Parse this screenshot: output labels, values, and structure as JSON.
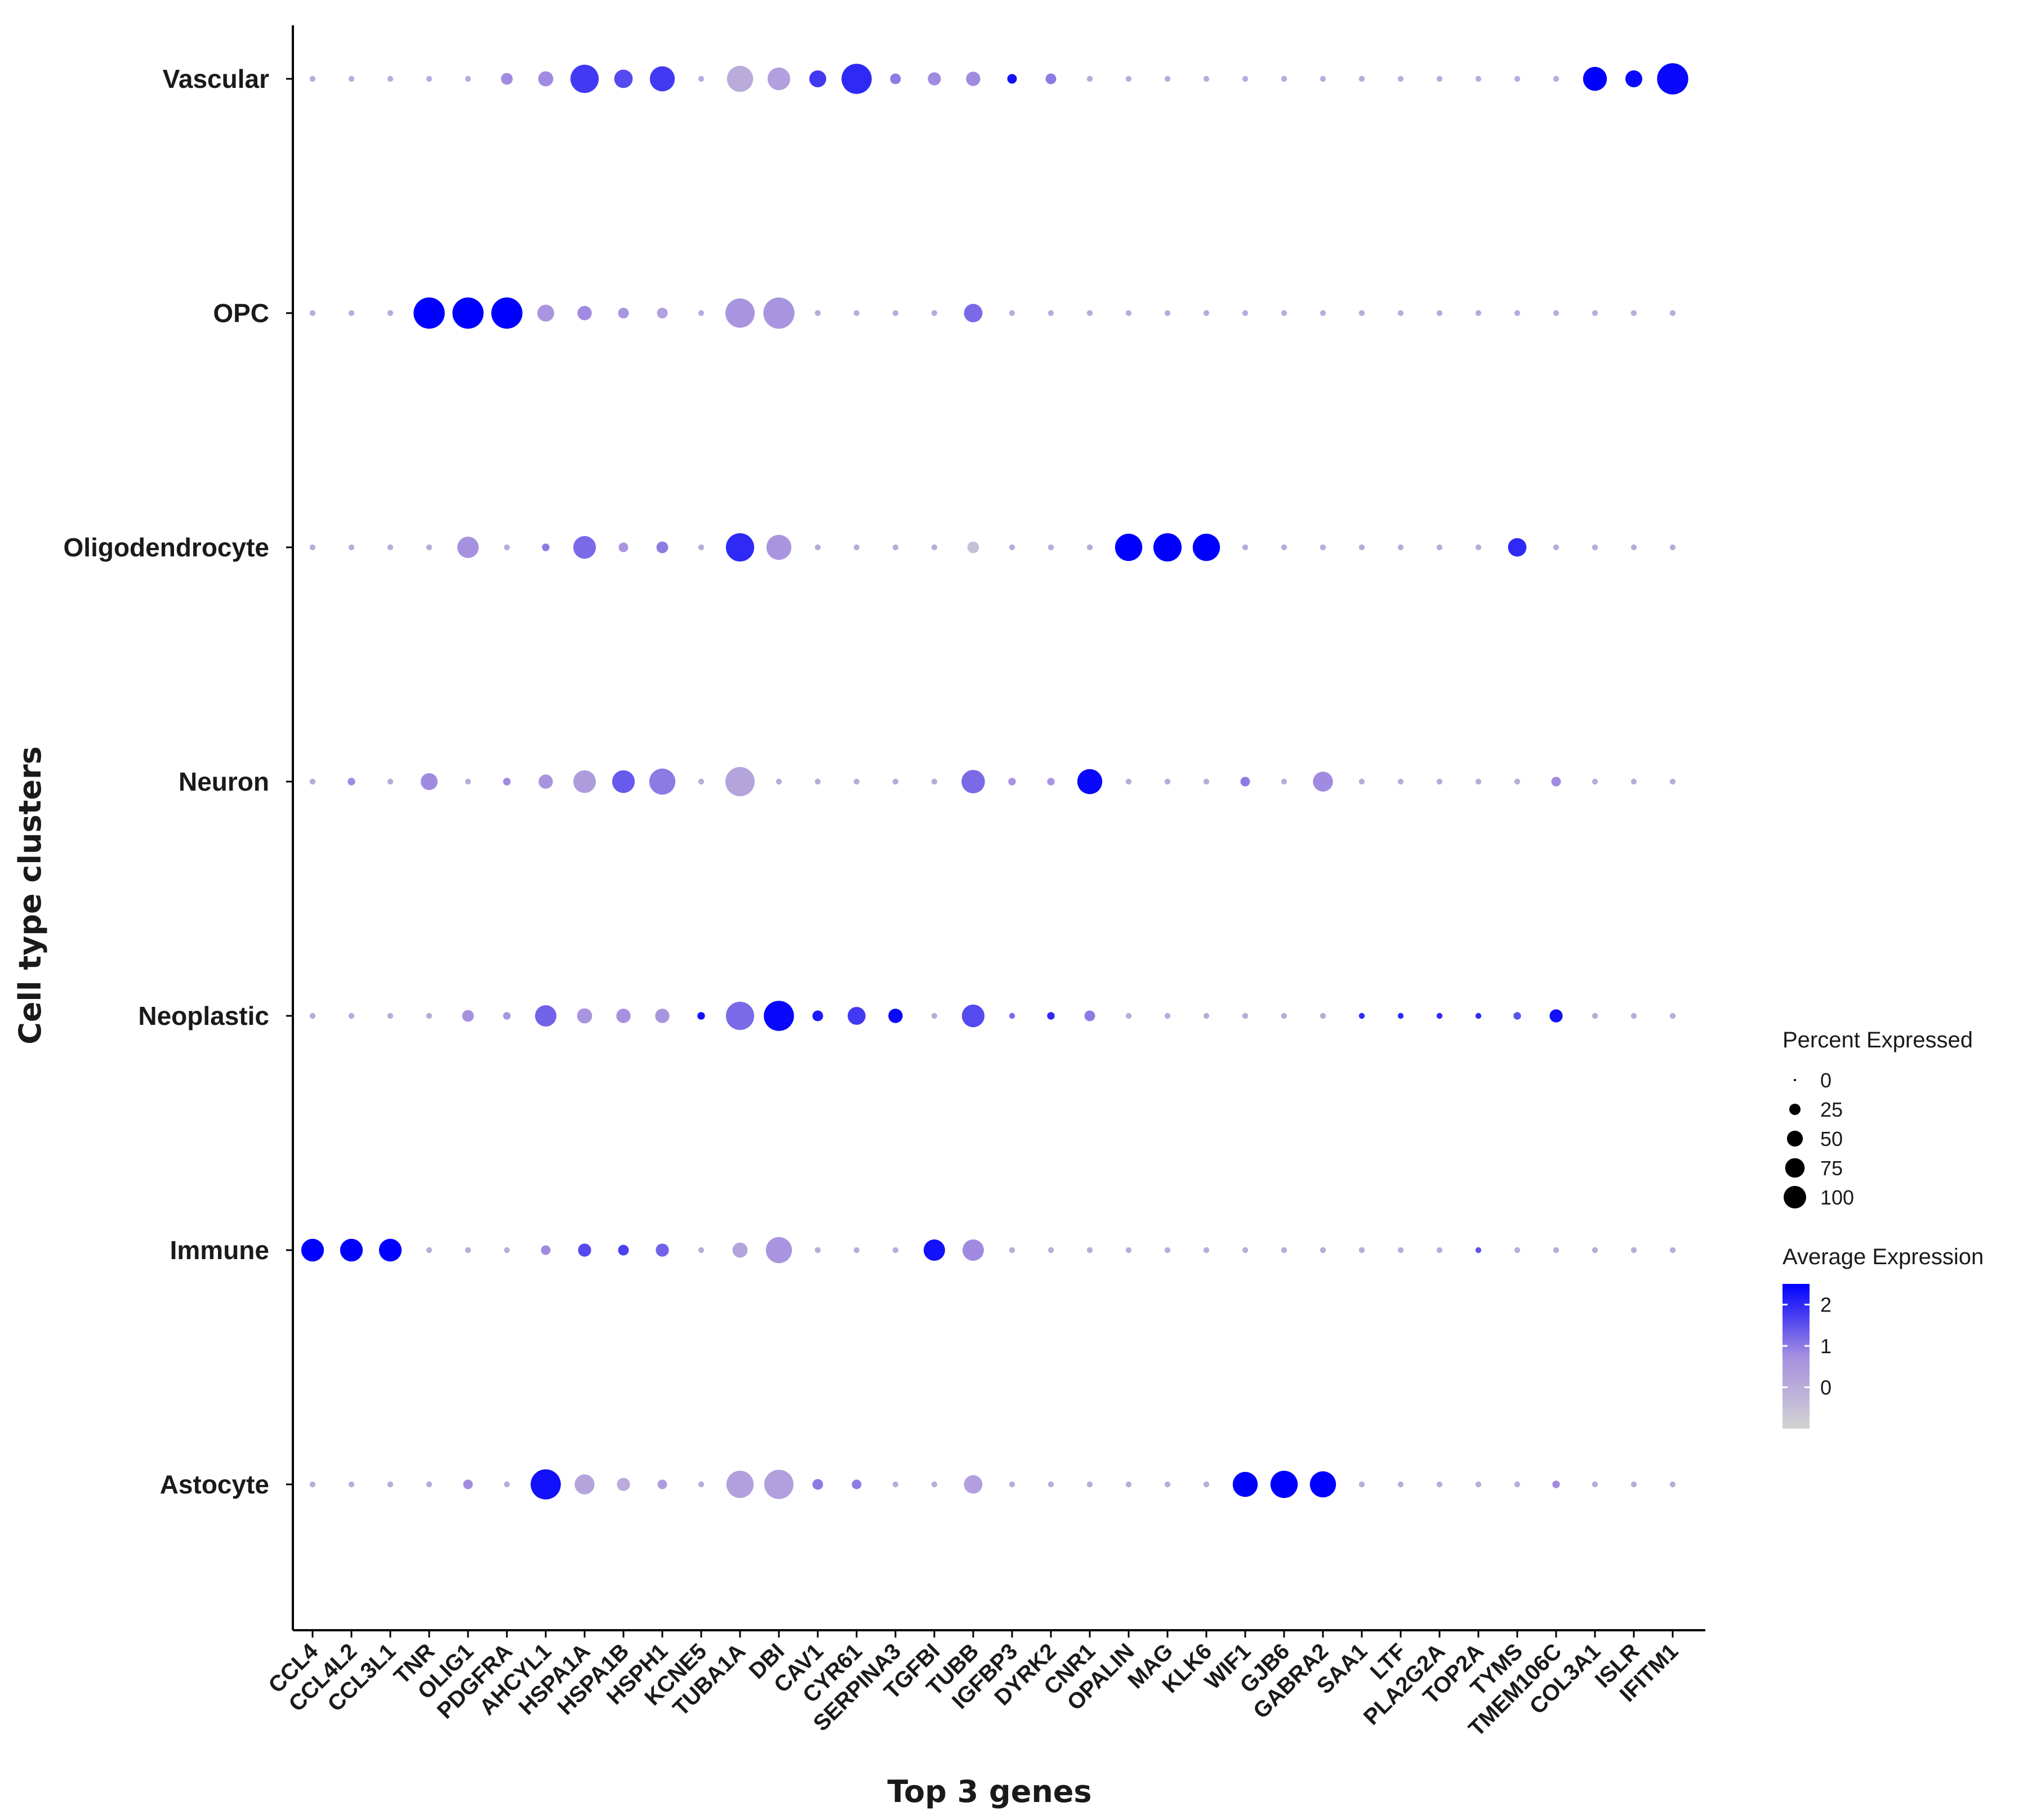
{
  "chart_data": {
    "type": "dotplot",
    "xlabel": "Top 3 genes",
    "ylabel": "Cell type clusters",
    "genes": [
      "CCL4",
      "CCL4L2",
      "CCL3L1",
      "TNR",
      "OLIG1",
      "PDGFRA",
      "AHCYL1",
      "HSPA1A",
      "HSPA1B",
      "HSPH1",
      "KCNE5",
      "TUBA1A",
      "DBI",
      "CAV1",
      "CYR61",
      "SERPINA3",
      "TGFBI",
      "TUBB",
      "IGFBP3",
      "DYRK2",
      "CNR1",
      "OPALIN",
      "MAG",
      "KLK6",
      "WIF1",
      "GJB6",
      "GABRA2",
      "SAA1",
      "LTF",
      "PLA2G2A",
      "TOP2A",
      "TYMS",
      "TMEM106C",
      "COL3A1",
      "ISLR",
      "IFITM1"
    ],
    "clusters": [
      "Vascular",
      "OPC",
      "Oligodendrocyte",
      "Neuron",
      "Neoplastic",
      "Immune",
      "Astocyte"
    ],
    "percent_expressed": {
      "Vascular": [
        3,
        3,
        3,
        3,
        3,
        12,
        20,
        70,
        30,
        55,
        3,
        60,
        45,
        25,
        80,
        10,
        15,
        18,
        8,
        10,
        3,
        3,
        3,
        3,
        3,
        3,
        3,
        3,
        3,
        3,
        3,
        3,
        3,
        50,
        25,
        85
      ],
      "OPC": [
        3,
        3,
        3,
        85,
        85,
        85,
        25,
        18,
        10,
        10,
        3,
        75,
        85,
        3,
        3,
        3,
        3,
        30,
        3,
        3,
        3,
        3,
        3,
        3,
        3,
        3,
        3,
        3,
        3,
        3,
        3,
        3,
        3,
        3,
        3,
        3
      ],
      "Oligodendrocyte": [
        3,
        3,
        3,
        3,
        40,
        3,
        5,
        45,
        8,
        12,
        3,
        70,
        55,
        3,
        3,
        3,
        3,
        12,
        3,
        3,
        3,
        65,
        70,
        65,
        3,
        3,
        3,
        3,
        3,
        3,
        3,
        30,
        3,
        3,
        3,
        3
      ],
      "Neuron": [
        3,
        5,
        3,
        25,
        3,
        5,
        18,
        45,
        45,
        60,
        3,
        75,
        3,
        3,
        3,
        3,
        3,
        48,
        5,
        5,
        55,
        3,
        3,
        3,
        8,
        3,
        35,
        3,
        3,
        3,
        3,
        3,
        8,
        3,
        3,
        3
      ],
      "Neoplastic": [
        3,
        3,
        3,
        3,
        12,
        5,
        40,
        20,
        18,
        18,
        5,
        70,
        80,
        10,
        28,
        18,
        3,
        45,
        3,
        5,
        10,
        3,
        3,
        3,
        3,
        3,
        3,
        3,
        3,
        3,
        3,
        5,
        15,
        3,
        3,
        3
      ],
      "Immune": [
        45,
        45,
        45,
        3,
        3,
        3,
        8,
        15,
        10,
        15,
        3,
        20,
        60,
        3,
        3,
        3,
        40,
        40,
        3,
        3,
        3,
        3,
        3,
        3,
        3,
        3,
        3,
        3,
        3,
        3,
        3,
        3,
        3,
        3,
        3,
        3
      ],
      "Astocyte": [
        3,
        3,
        3,
        3,
        8,
        3,
        80,
        35,
        15,
        8,
        3,
        65,
        75,
        10,
        8,
        3,
        3,
        30,
        3,
        3,
        3,
        3,
        3,
        3,
        55,
        65,
        60,
        3,
        3,
        3,
        3,
        3,
        5,
        3,
        3,
        3
      ]
    },
    "average_expression": {
      "Vascular": [
        0,
        0,
        0,
        0,
        0,
        0.8,
        0.8,
        1.8,
        1.6,
        1.8,
        0,
        0,
        0.3,
        1.8,
        2.0,
        1.0,
        0.8,
        0.8,
        2.3,
        1.0,
        0,
        0,
        0,
        0,
        0,
        0,
        0,
        0,
        0,
        0,
        0,
        0,
        0,
        2.5,
        2.4,
        2.4
      ],
      "OPC": [
        0,
        0,
        0,
        2.5,
        2.5,
        2.5,
        0.6,
        0.8,
        0.6,
        0.3,
        0,
        0.6,
        0.6,
        0,
        0,
        0,
        0,
        1.2,
        0,
        0,
        0,
        0,
        0,
        0,
        0,
        0,
        0,
        0,
        0,
        0,
        0,
        0,
        0,
        0,
        0,
        0
      ],
      "Oligodendrocyte": [
        0,
        0,
        0,
        0,
        0.7,
        0,
        1.0,
        1.2,
        0.6,
        1.0,
        0,
        2.0,
        0.6,
        0,
        0,
        0,
        0,
        -0.5,
        0,
        0,
        0,
        2.5,
        2.5,
        2.5,
        0,
        0,
        0,
        0,
        0,
        0,
        0,
        2.0,
        0,
        0,
        0,
        0
      ],
      "Neuron": [
        0,
        0.8,
        0,
        0.8,
        0,
        0.8,
        0.6,
        0.4,
        1.4,
        1.0,
        0,
        0.2,
        0,
        0,
        0,
        0,
        0,
        1.2,
        0.6,
        0.6,
        2.4,
        0,
        0,
        0,
        1.0,
        0,
        0.8,
        0,
        0,
        0,
        0,
        0,
        0.8,
        0,
        0,
        0
      ],
      "Neoplastic": [
        0,
        0,
        0,
        0,
        0.7,
        0.6,
        1.3,
        0.6,
        0.7,
        0.6,
        2.3,
        1.2,
        2.4,
        2.2,
        1.8,
        2.4,
        0,
        1.6,
        1.2,
        2.0,
        1.0,
        0,
        0,
        0,
        0,
        0,
        0,
        2.0,
        2.0,
        2.0,
        2.0,
        1.5,
        2.3,
        0,
        0,
        0
      ],
      "Immune": [
        2.5,
        2.5,
        2.5,
        0,
        0,
        0,
        0.8,
        1.6,
        1.7,
        1.3,
        0,
        0.2,
        0.6,
        0,
        0,
        0,
        2.3,
        0.8,
        0,
        0,
        0,
        0,
        0,
        0,
        0,
        0,
        0,
        0,
        0,
        0,
        1.5,
        0,
        0,
        0,
        0,
        0
      ],
      "Astocyte": [
        0,
        0,
        0,
        0,
        0.8,
        0,
        2.3,
        0.2,
        0,
        0.4,
        0,
        0.3,
        0.3,
        1.0,
        1.0,
        0,
        0,
        0.3,
        0,
        0,
        0,
        0,
        0,
        0,
        2.5,
        2.5,
        2.5,
        0,
        0,
        0,
        0,
        0,
        0.8,
        0,
        0,
        0
      ]
    },
    "legend_size": {
      "title": "Percent Expressed",
      "values": [
        0,
        25,
        50,
        75,
        100
      ],
      "labels": [
        "0",
        "25",
        "50",
        "75",
        "100"
      ]
    },
    "legend_color": {
      "title": "Average Expression",
      "range": [
        -1,
        2.5
      ],
      "ticks": [
        2,
        1,
        0
      ],
      "labels": [
        "2",
        "1",
        "0"
      ],
      "low_color": "#d3d3d3",
      "mid_color": "#a58fe0",
      "high_color": "#0000ff"
    }
  }
}
